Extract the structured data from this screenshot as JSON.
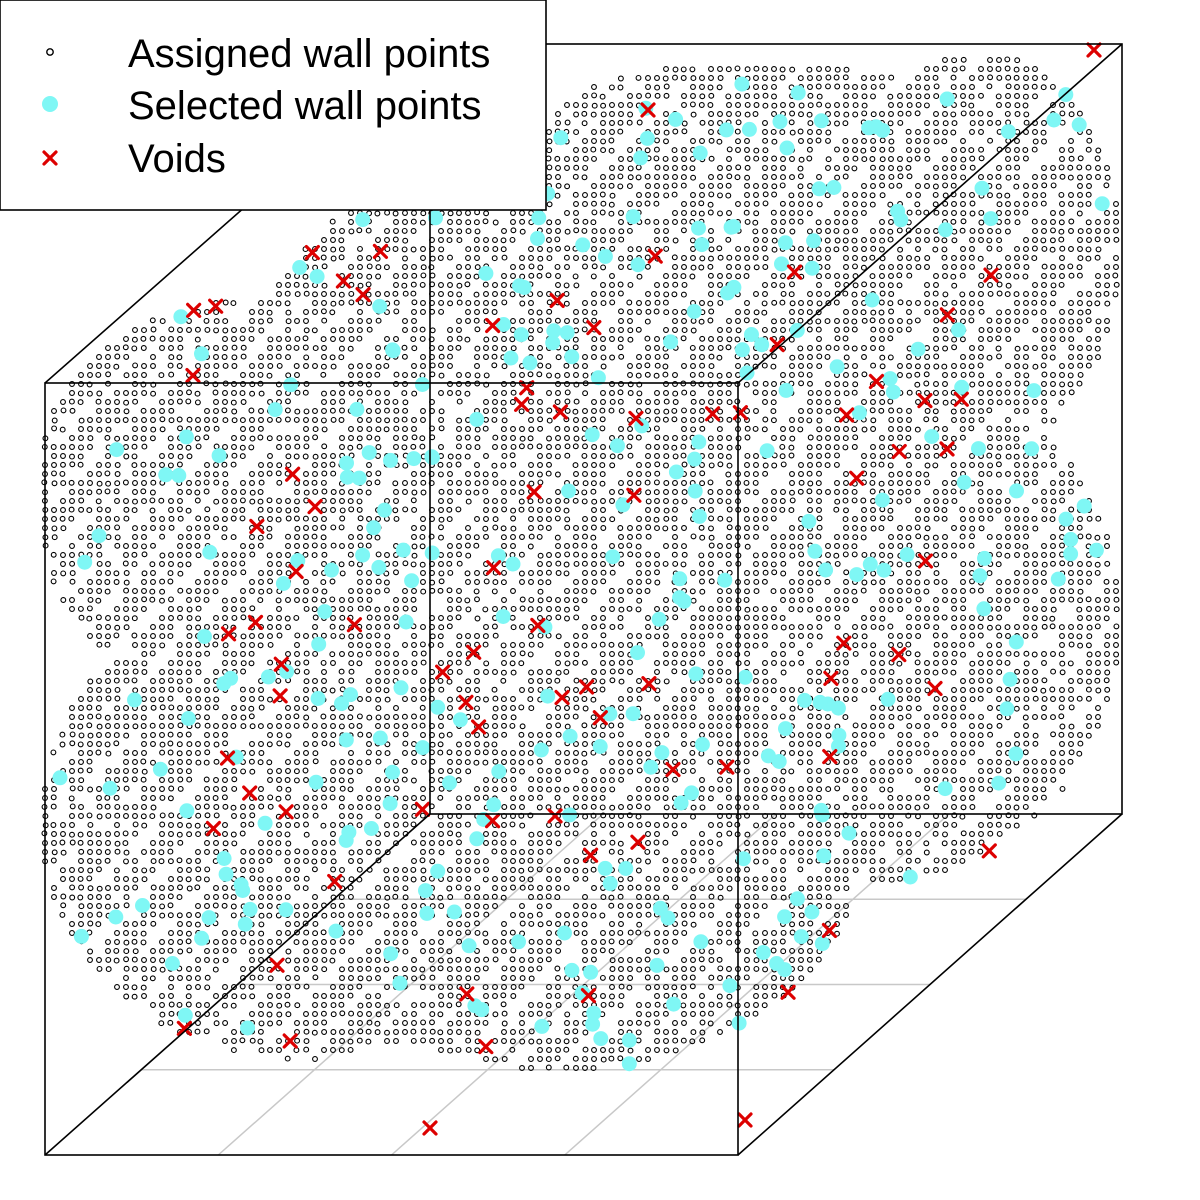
{
  "chart_data": {
    "type": "scatter",
    "projection": "3d-box",
    "legend_placement": "top-left",
    "grid": false,
    "series": [
      {
        "name": "Assigned wall points",
        "marker": "small-open-circle",
        "color": "#000000",
        "description_of_spatial_pattern": "dense diagonal streaks filling a blob inside the unit cube"
      },
      {
        "name": "Selected wall points",
        "marker": "filled-circle",
        "color": "#7ff7f5",
        "count": 290
      },
      {
        "name": "Voids",
        "marker": "x",
        "color": "#dd0000",
        "count": 76
      }
    ],
    "axes": {
      "x": [
        0,
        1
      ],
      "y": [
        0,
        1
      ],
      "z": [
        0,
        1
      ]
    }
  }
}
